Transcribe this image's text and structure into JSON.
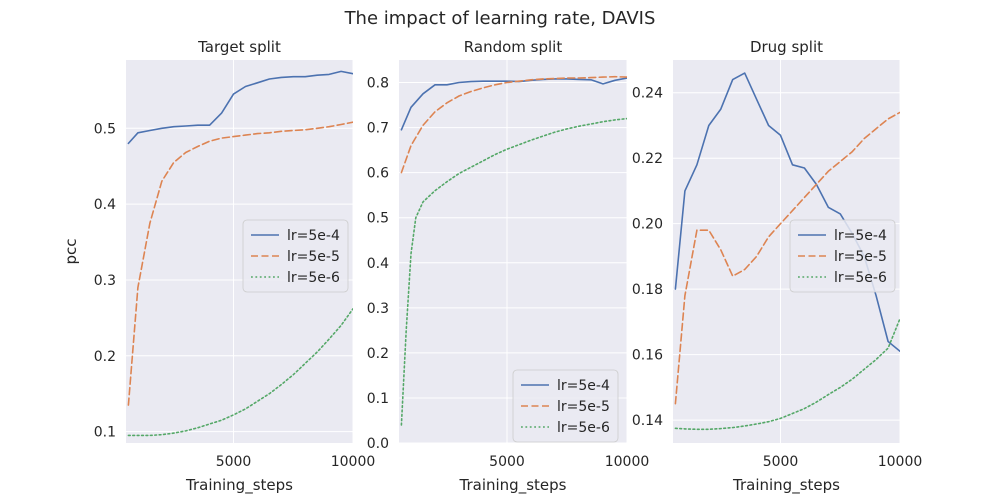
{
  "suptitle": "The impact of learning rate, DAVIS",
  "colors": {
    "panel_bg": "#eaeaf2",
    "grid": "#ffffff",
    "text": "#262626",
    "lr_5e_4": "#4c72b0",
    "lr_5e_5": "#dd8452",
    "lr_5e_6": "#55a868"
  },
  "chart_data": [
    {
      "type": "line",
      "title": "Target split",
      "xlabel": "Training_steps",
      "ylabel": "pcc",
      "xlim": [
        500,
        10000
      ],
      "ylim": [
        0.085,
        0.59
      ],
      "xticks": [
        5000,
        10000
      ],
      "xtick_labels": [
        "5000",
        "10000"
      ],
      "yticks": [
        0.1,
        0.2,
        0.3,
        0.4,
        0.5
      ],
      "ytick_labels": [
        "0.1",
        "0.2",
        "0.3",
        "0.4",
        "0.5"
      ],
      "legend_position": "center-right",
      "series": [
        {
          "name": "lr=5e-4",
          "style": "solid",
          "x": [
            600,
            1000,
            1500,
            2000,
            2500,
            3000,
            3500,
            4000,
            4500,
            5000,
            5500,
            6000,
            6500,
            7000,
            7500,
            8000,
            8500,
            9000,
            9500,
            10000
          ],
          "y": [
            0.48,
            0.494,
            0.497,
            0.5,
            0.502,
            0.503,
            0.504,
            0.504,
            0.52,
            0.545,
            0.555,
            0.56,
            0.565,
            0.567,
            0.568,
            0.568,
            0.57,
            0.571,
            0.575,
            0.572
          ]
        },
        {
          "name": "lr=5e-5",
          "style": "dashed",
          "x": [
            600,
            1000,
            1500,
            2000,
            2500,
            3000,
            3500,
            4000,
            4500,
            5000,
            5500,
            6000,
            6500,
            7000,
            7500,
            8000,
            8500,
            9000,
            9500,
            10000
          ],
          "y": [
            0.135,
            0.29,
            0.375,
            0.43,
            0.455,
            0.468,
            0.476,
            0.483,
            0.487,
            0.489,
            0.491,
            0.493,
            0.494,
            0.496,
            0.497,
            0.498,
            0.5,
            0.502,
            0.505,
            0.508
          ]
        },
        {
          "name": "lr=5e-6",
          "style": "dotted",
          "x": [
            600,
            1000,
            1500,
            2000,
            2500,
            3000,
            3500,
            4000,
            4500,
            5000,
            5500,
            6000,
            6500,
            7000,
            7500,
            8000,
            8500,
            9000,
            9500,
            10000
          ],
          "y": [
            0.095,
            0.095,
            0.095,
            0.096,
            0.098,
            0.101,
            0.105,
            0.11,
            0.115,
            0.122,
            0.13,
            0.14,
            0.15,
            0.162,
            0.175,
            0.19,
            0.205,
            0.222,
            0.24,
            0.262
          ]
        }
      ]
    },
    {
      "type": "line",
      "title": "Random split",
      "xlabel": "Training_steps",
      "ylabel": "",
      "xlim": [
        500,
        10000
      ],
      "ylim": [
        0.0,
        0.85
      ],
      "xticks": [
        5000,
        10000
      ],
      "xtick_labels": [
        "5000",
        "10000"
      ],
      "yticks": [
        0.0,
        0.1,
        0.2,
        0.3,
        0.4,
        0.5,
        0.6,
        0.7,
        0.8
      ],
      "ytick_labels": [
        "0.0",
        "0.1",
        "0.2",
        "0.3",
        "0.4",
        "0.5",
        "0.6",
        "0.7",
        "0.8"
      ],
      "legend_position": "lower-right",
      "series": [
        {
          "name": "lr=5e-4",
          "style": "solid",
          "x": [
            600,
            1000,
            1500,
            2000,
            2500,
            3000,
            3500,
            4000,
            4500,
            5000,
            5500,
            6000,
            6500,
            7000,
            7500,
            8000,
            8500,
            9000,
            9500,
            10000
          ],
          "y": [
            0.695,
            0.745,
            0.775,
            0.795,
            0.795,
            0.8,
            0.802,
            0.803,
            0.803,
            0.803,
            0.802,
            0.805,
            0.807,
            0.808,
            0.808,
            0.807,
            0.806,
            0.797,
            0.805,
            0.81
          ]
        },
        {
          "name": "lr=5e-5",
          "style": "dashed",
          "x": [
            600,
            1000,
            1500,
            2000,
            2500,
            3000,
            3500,
            4000,
            4500,
            5000,
            5500,
            6000,
            6500,
            7000,
            7500,
            8000,
            8500,
            9000,
            9500,
            10000
          ],
          "y": [
            0.6,
            0.66,
            0.705,
            0.735,
            0.755,
            0.77,
            0.78,
            0.788,
            0.795,
            0.8,
            0.803,
            0.806,
            0.808,
            0.809,
            0.81,
            0.81,
            0.811,
            0.812,
            0.813,
            0.812
          ]
        },
        {
          "name": "lr=5e-6",
          "style": "dotted",
          "x": [
            600,
            800,
            1000,
            1200,
            1500,
            2000,
            2500,
            3000,
            3500,
            4000,
            4500,
            5000,
            5500,
            6000,
            6500,
            7000,
            7500,
            8000,
            8500,
            9000,
            9500,
            10000
          ],
          "y": [
            0.04,
            0.25,
            0.42,
            0.5,
            0.535,
            0.56,
            0.58,
            0.598,
            0.612,
            0.626,
            0.64,
            0.652,
            0.662,
            0.672,
            0.681,
            0.69,
            0.697,
            0.703,
            0.708,
            0.713,
            0.717,
            0.72
          ]
        }
      ]
    },
    {
      "type": "line",
      "title": "Drug split",
      "xlabel": "Training_steps",
      "ylabel": "",
      "xlim": [
        500,
        10000
      ],
      "ylim": [
        0.133,
        0.25
      ],
      "xticks": [
        5000,
        10000
      ],
      "xtick_labels": [
        "5000",
        "10000"
      ],
      "yticks": [
        0.14,
        0.16,
        0.18,
        0.2,
        0.22,
        0.24
      ],
      "ytick_labels": [
        "0.14",
        "0.16",
        "0.18",
        "0.20",
        "0.22",
        "0.24"
      ],
      "legend_position": "center-right",
      "series": [
        {
          "name": "lr=5e-4",
          "style": "solid",
          "x": [
            600,
            1000,
            1500,
            2000,
            2500,
            3000,
            3500,
            4000,
            4500,
            5000,
            5500,
            6000,
            6500,
            7000,
            7500,
            8000,
            8500,
            9000,
            9500,
            10000
          ],
          "y": [
            0.18,
            0.21,
            0.218,
            0.23,
            0.235,
            0.244,
            0.246,
            0.238,
            0.23,
            0.227,
            0.218,
            0.217,
            0.212,
            0.205,
            0.203,
            0.197,
            0.19,
            0.178,
            0.164,
            0.161
          ]
        },
        {
          "name": "lr=5e-5",
          "style": "dashed",
          "x": [
            600,
            1000,
            1500,
            2000,
            2500,
            3000,
            3500,
            4000,
            4500,
            5000,
            5500,
            6000,
            6500,
            7000,
            7500,
            8000,
            8500,
            9000,
            9500,
            10000
          ],
          "y": [
            0.145,
            0.178,
            0.198,
            0.198,
            0.192,
            0.184,
            0.186,
            0.19,
            0.196,
            0.2,
            0.204,
            0.208,
            0.212,
            0.216,
            0.219,
            0.222,
            0.226,
            0.229,
            0.232,
            0.234
          ]
        },
        {
          "name": "lr=5e-6",
          "style": "dotted",
          "x": [
            600,
            1000,
            1500,
            2000,
            2500,
            3000,
            3500,
            4000,
            4500,
            5000,
            5500,
            6000,
            6500,
            7000,
            7500,
            8000,
            8500,
            9000,
            9500,
            10000
          ],
          "y": [
            0.1375,
            0.1373,
            0.1372,
            0.1372,
            0.1374,
            0.1377,
            0.1382,
            0.1388,
            0.1395,
            0.1405,
            0.142,
            0.1435,
            0.1455,
            0.1478,
            0.15,
            0.1525,
            0.1555,
            0.1585,
            0.162,
            0.171
          ]
        }
      ]
    }
  ]
}
